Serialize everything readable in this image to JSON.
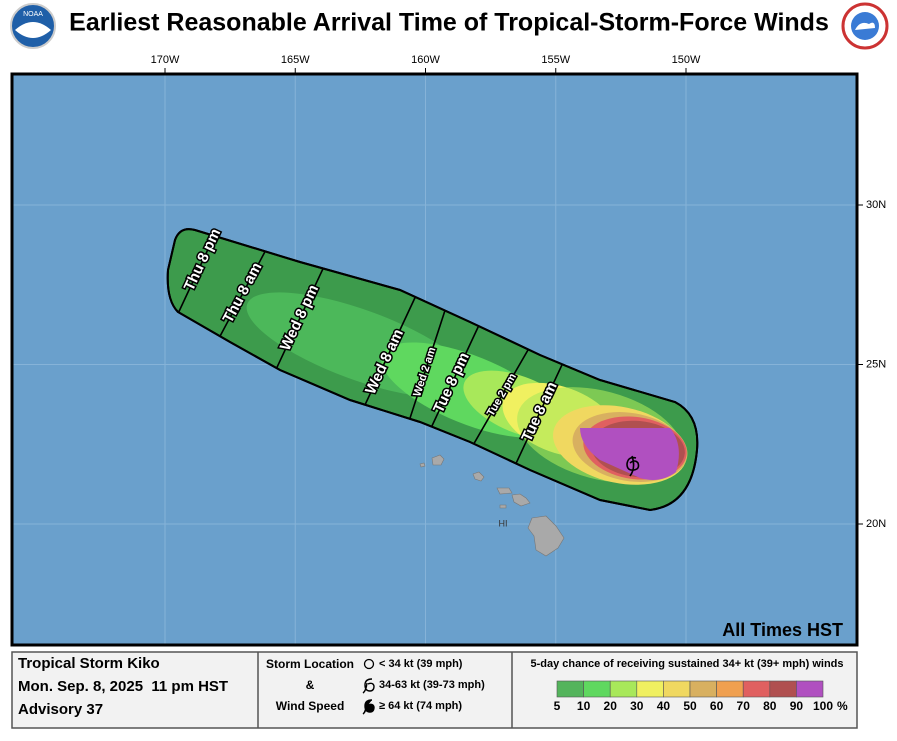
{
  "header": {
    "title": "Earliest Reasonable Arrival Time of Tropical-Storm-Force Winds"
  },
  "map": {
    "xticks": [
      {
        "value": -170,
        "label": "170W"
      },
      {
        "value": -165,
        "label": "165W"
      },
      {
        "value": -160,
        "label": "160W"
      },
      {
        "value": -155,
        "label": "155W"
      },
      {
        "value": -150,
        "label": "150W"
      }
    ],
    "yticks": [
      {
        "value": 30,
        "label": "30N"
      },
      {
        "value": 25,
        "label": "25N"
      },
      {
        "value": 20,
        "label": "20N"
      }
    ],
    "arrival_labels": [
      "Thu 8 pm",
      "Thu 8 am",
      "Wed 8 pm",
      "Wed 8 am",
      "Wed 2 am",
      "Tue 8 pm",
      "Tue 2 pm",
      "Tue 8 am"
    ],
    "island_label": "HI",
    "time_zone_note": "All Times HST"
  },
  "info": {
    "storm": "Tropical Storm Kiko",
    "time": "Mon. Sep. 8, 2025  11 pm HST",
    "advisory": "Advisory 37"
  },
  "storm_legend": {
    "title_lines": [
      "Storm Location",
      "&",
      "Wind Speed"
    ],
    "items": [
      "< 34 kt (39 mph)",
      "34-63 kt (39-73 mph)",
      "≥ 64 kt (74 mph)"
    ]
  },
  "probability_legend": {
    "title": "5-day chance of receiving sustained 34+ kt (39+ mph) winds",
    "colors": [
      "#54b45c",
      "#5fd85f",
      "#a8e85a",
      "#f0f060",
      "#f0d860",
      "#d8b060",
      "#f0a050",
      "#e06060",
      "#b05050",
      "#b050c0"
    ],
    "labels": [
      5,
      10,
      20,
      30,
      40,
      50,
      60,
      70,
      80,
      90,
      100
    ],
    "unit": "%"
  }
}
